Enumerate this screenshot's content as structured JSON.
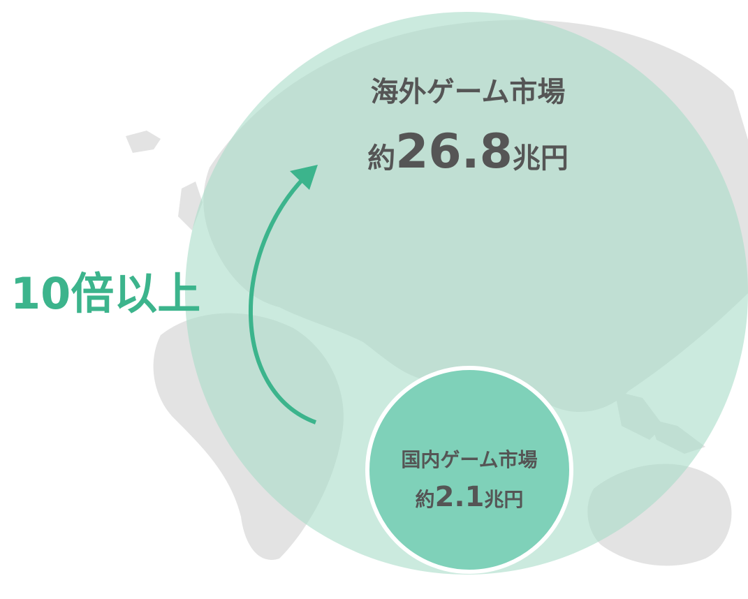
{
  "overseas": {
    "title": "海外ゲーム市場",
    "prefix": "約",
    "value": "26.8",
    "unit": "兆円"
  },
  "domestic": {
    "title": "国内ゲーム市場",
    "prefix": "約",
    "value": "2.1",
    "unit": "兆円"
  },
  "comparison": {
    "label": "10倍以上"
  }
}
